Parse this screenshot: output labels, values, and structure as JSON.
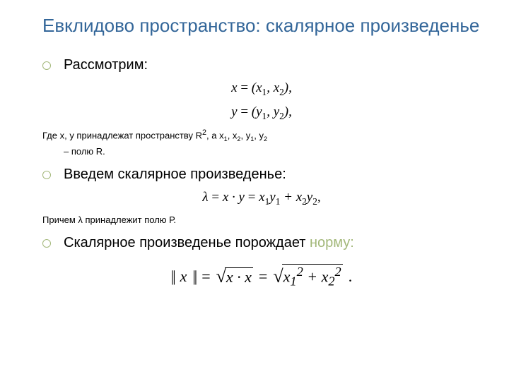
{
  "colors": {
    "title": "#336699",
    "bullet_border": "#a3b87a",
    "body_text": "#000000",
    "accent": "#a3b87a"
  },
  "fontsizes": {
    "title": 26,
    "bullet": 20,
    "note": 13,
    "formula": 19,
    "norm": 22
  },
  "title": "Евклидово пространство: скалярное произведенье",
  "bullets": {
    "b1": "Рассмотрим:",
    "b2": "Введем скалярное произведенье:",
    "b3_pre": "Скалярное произведенье порождает ",
    "b3_accent": "норму:"
  },
  "formulas": {
    "x_def_lhs": "x",
    "x_def_rhs": "(x₁, x₂),",
    "y_def_lhs": "y",
    "y_def_rhs": "(y₁, y₂),",
    "lambda_lhs": "λ",
    "lambda_mid": "x · y",
    "lambda_rhs": "x₁y₁ + x₂y₂,",
    "norm_x": "x",
    "norm_mid": "x · x",
    "norm_rhs": "x₁² + x₂²",
    "eq": "="
  },
  "notes": {
    "n1_pre": "Где x, y принадлежат пространству R",
    "n1_sup": "2",
    "n1_mid": ", а x",
    "n1_s1": "1",
    "n1_c": ", x",
    "n1_s2": "2",
    "n1_d": ", y",
    "n1_s3": "1",
    "n1_e": ", y",
    "n1_s4": "2",
    "n1_post": " – полю R.",
    "n2": "Причем λ принадлежит полю Р."
  }
}
